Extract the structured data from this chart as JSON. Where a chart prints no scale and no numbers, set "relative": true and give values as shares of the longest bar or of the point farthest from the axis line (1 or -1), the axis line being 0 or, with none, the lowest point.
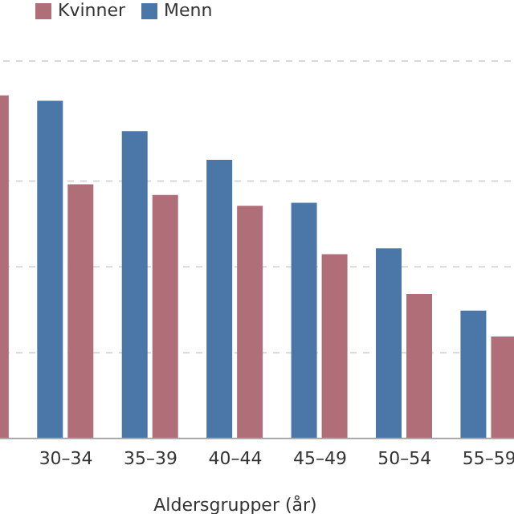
{
  "chart_data": {
    "type": "bar",
    "xlabel": "Aldersgrupper (år)",
    "categories": [
      null,
      "30–34",
      "35–39",
      "40–44",
      "45–49",
      "50–54",
      "55–59"
    ],
    "series": [
      {
        "name": "Menn",
        "color": "#4a76a8",
        "values": [
          null,
          0.984,
          0.896,
          0.812,
          0.687,
          0.554,
          0.373
        ]
      },
      {
        "name": "Kvinner",
        "color": "#b06e78",
        "values": [
          1.0,
          0.741,
          0.71,
          0.678,
          0.537,
          0.421,
          0.297
        ]
      }
    ],
    "relative": true,
    "legend": "top",
    "grid": "y"
  }
}
